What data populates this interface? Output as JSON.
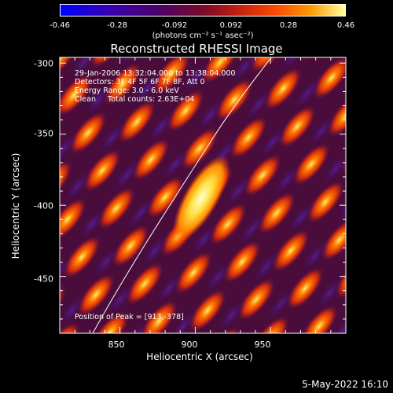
{
  "colorbar": {
    "ticks": [
      "-0.46",
      "-0.28",
      "-0.092",
      "0.092",
      "0.28",
      "0.46"
    ],
    "unit": "(photons cm⁻² s⁻¹ asec⁻²)"
  },
  "plot": {
    "title": "Reconstructed RHESSI Image",
    "info_lines": [
      "29-Jan-2006 13:32:04.000 to 13:38:04.000",
      "Detectors: 3F 4F 5F 6F 7F 8F, Att 0",
      "Energy Range: 3.0 - 6.0 keV",
      "Clean     Total counts: 2.63E+04"
    ],
    "peak_text": "Position of Peak = [913,-378]",
    "x_ticks": [
      "850",
      "900",
      "950"
    ],
    "y_ticks": [
      "-300",
      "-350",
      "-400",
      "-450"
    ],
    "xlabel": "Heliocentric X (arcsec)",
    "ylabel": "Heliocentric Y (arcsec)"
  },
  "footer": {
    "date": "5-May-2022 16:10"
  },
  "colors": {
    "background": "#000000",
    "limb_line": "#ffffff",
    "axis": "#ffffff"
  },
  "chart_data": {
    "type": "heatmap",
    "title": "Reconstructed RHESSI Image",
    "xlabel": "Heliocentric X (arcsec)",
    "ylabel": "Heliocentric Y (arcsec)",
    "xlim": [
      810,
      1000
    ],
    "ylim": [
      -490,
      -296
    ],
    "colorbar_range": [
      -0.46,
      0.46
    ],
    "peak": {
      "x": 913,
      "y": -378
    }
  }
}
